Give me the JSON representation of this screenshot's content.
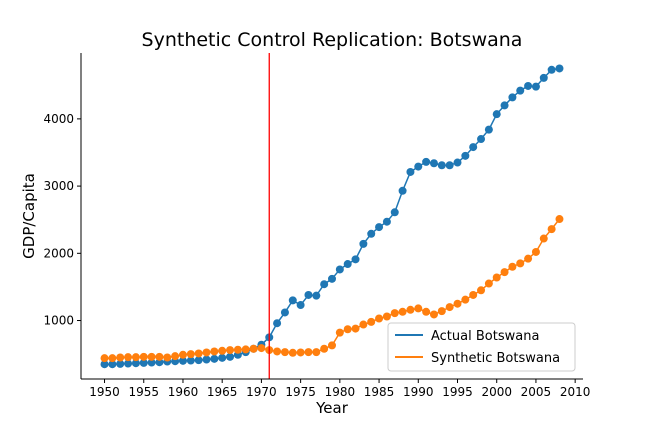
{
  "chart_data": {
    "type": "line",
    "title": "Synthetic Control Replication: Botswana",
    "xlabel": "Year",
    "ylabel": "GDP/Capita",
    "xlim": [
      1947,
      2011
    ],
    "ylim": [
      130,
      4980
    ],
    "xticks": [
      1950,
      1955,
      1960,
      1965,
      1970,
      1975,
      1980,
      1985,
      1990,
      1995,
      2000,
      2005,
      2010
    ],
    "yticks": [
      1000,
      2000,
      3000,
      4000
    ],
    "grid": false,
    "legend_position": "lower right",
    "treatment_year": 1971,
    "treatment_line_color": "#ff0000",
    "x": [
      1950,
      1951,
      1952,
      1953,
      1954,
      1955,
      1956,
      1957,
      1958,
      1959,
      1960,
      1961,
      1962,
      1963,
      1964,
      1965,
      1966,
      1967,
      1968,
      1969,
      1970,
      1971,
      1972,
      1973,
      1974,
      1975,
      1976,
      1977,
      1978,
      1979,
      1980,
      1981,
      1982,
      1983,
      1984,
      1985,
      1986,
      1987,
      1988,
      1989,
      1990,
      1991,
      1992,
      1993,
      1994,
      1995,
      1996,
      1997,
      1998,
      1999,
      2000,
      2001,
      2002,
      2003,
      2004,
      2005,
      2006,
      2007,
      2008
    ],
    "series": [
      {
        "name": "Actual Botswana",
        "color": "#1f77b4",
        "values": [
          350,
          350,
          355,
          360,
          365,
          370,
          375,
          380,
          390,
          395,
          400,
          405,
          410,
          420,
          430,
          445,
          460,
          490,
          530,
          580,
          640,
          750,
          960,
          1120,
          1300,
          1230,
          1380,
          1370,
          1540,
          1620,
          1760,
          1840,
          1910,
          2140,
          2290,
          2390,
          2470,
          2610,
          2930,
          3210,
          3290,
          3360,
          3340,
          3310,
          3310,
          3350,
          3450,
          3580,
          3700,
          3840,
          4070,
          4200,
          4320,
          4420,
          4490,
          4480,
          4610,
          4730,
          4750
        ]
      },
      {
        "name": "Synthetic Botswana",
        "color": "#ff7f0e",
        "values": [
          440,
          440,
          450,
          455,
          455,
          460,
          460,
          460,
          450,
          470,
          490,
          500,
          510,
          525,
          540,
          550,
          560,
          565,
          570,
          580,
          590,
          560,
          540,
          530,
          520,
          525,
          530,
          530,
          580,
          630,
          820,
          870,
          880,
          940,
          980,
          1030,
          1060,
          1110,
          1130,
          1160,
          1180,
          1130,
          1090,
          1140,
          1200,
          1250,
          1310,
          1380,
          1450,
          1550,
          1640,
          1720,
          1800,
          1850,
          1920,
          2020,
          2220,
          2360,
          2510
        ]
      }
    ]
  }
}
